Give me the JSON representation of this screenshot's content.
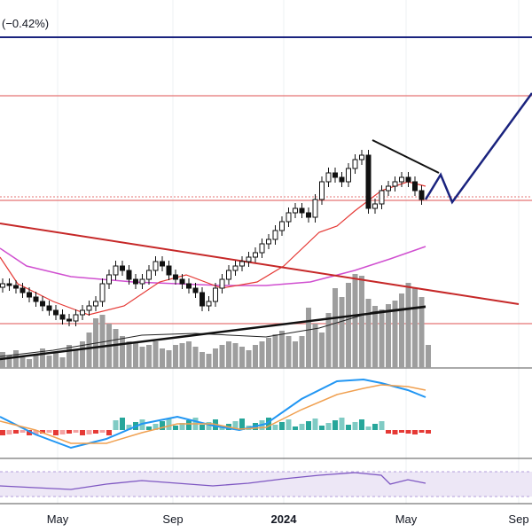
{
  "header": {
    "change": "(−0.42%)"
  },
  "x_axis": {
    "labels": [
      "May",
      "Sep",
      "2024",
      "May",
      "Sep"
    ]
  }
}
